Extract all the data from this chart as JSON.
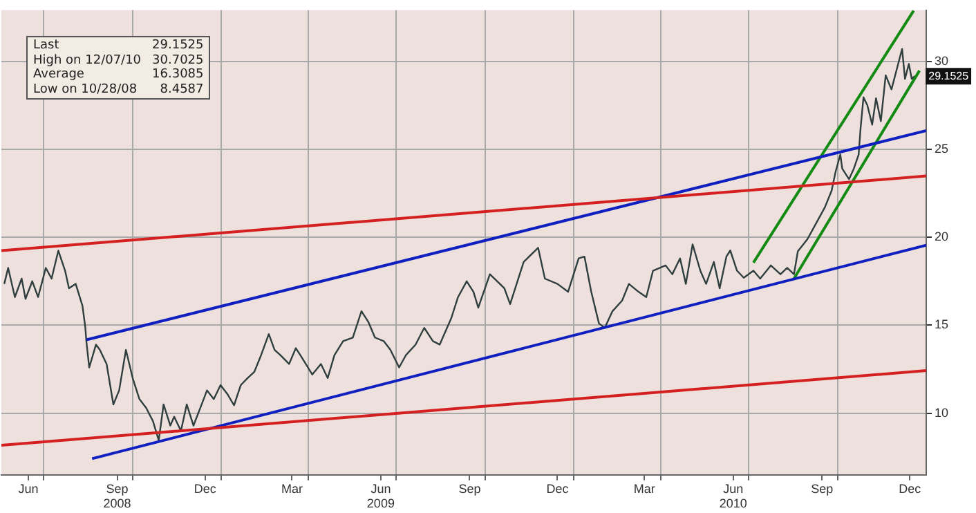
{
  "chart_data": {
    "type": "line",
    "legend": false,
    "grid": true,
    "line_style": "solid",
    "marker": "none",
    "xlim": [
      "2008-05-18",
      "2011-01-01"
    ],
    "xticks": [
      {
        "value": "2008-06-15",
        "label": "Jun"
      },
      {
        "value": "2008-07-01",
        "label": null
      },
      {
        "value": "2008-09-15",
        "label": "Sep\n2008"
      },
      {
        "value": "2008-10-01",
        "label": null
      },
      {
        "value": "2008-12-15",
        "label": "Dec"
      },
      {
        "value": "2009-01-01",
        "label": null
      },
      {
        "value": "2009-03-15",
        "label": "Mar"
      },
      {
        "value": "2009-04-01",
        "label": null
      },
      {
        "value": "2009-06-15",
        "label": "Jun\n2009"
      },
      {
        "value": "2009-07-01",
        "label": null
      },
      {
        "value": "2009-09-15",
        "label": "Sep"
      },
      {
        "value": "2009-10-01",
        "label": null
      },
      {
        "value": "2009-12-15",
        "label": "Dec"
      },
      {
        "value": "2010-01-01",
        "label": null
      },
      {
        "value": "2010-03-15",
        "label": "Mar"
      },
      {
        "value": "2010-04-01",
        "label": null
      },
      {
        "value": "2010-06-15",
        "label": "Jun\n2010"
      },
      {
        "value": "2010-07-01",
        "label": null
      },
      {
        "value": "2010-09-15",
        "label": "Sep"
      },
      {
        "value": "2010-10-01",
        "label": null
      },
      {
        "value": "2010-12-15",
        "label": "Dec"
      }
    ],
    "ylim": [
      6.5,
      32.9
    ],
    "yticks": [
      10,
      15,
      20,
      25,
      30
    ],
    "series": [
      {
        "color": "#d42020",
        "x": [
          "2008-05-18",
          "2011-01-01"
        ],
        "values": [
          19.24,
          23.48
        ]
      },
      {
        "color": "#d42020",
        "x": [
          "2008-05-18",
          "2011-01-01"
        ],
        "values": [
          8.18,
          12.42
        ]
      },
      {
        "color": "#1020c0",
        "x": [
          "2008-08-14",
          "2011-01-01"
        ],
        "values": [
          14.17,
          26.06
        ]
      },
      {
        "color": "#1020c0",
        "x": [
          "2008-08-20",
          "2011-01-01"
        ],
        "values": [
          7.42,
          19.55
        ]
      },
      {
        "color": "#138a13",
        "x": [
          "2010-07-06",
          "2010-12-19"
        ],
        "values": [
          18.56,
          32.88
        ]
      },
      {
        "color": "#138a13",
        "x": [
          "2010-08-17",
          "2010-12-25"
        ],
        "values": [
          17.65,
          29.47
        ]
      },
      {
        "color": "#2f3f3f",
        "x": [
          "2008-05-21",
          "2008-05-25",
          "2008-06-01",
          "2008-06-08",
          "2008-06-12",
          "2008-06-19",
          "2008-06-25",
          "2008-07-03",
          "2008-07-09",
          "2008-07-16",
          "2008-07-23",
          "2008-07-27",
          "2008-08-03",
          "2008-08-10",
          "2008-08-13",
          "2008-08-14",
          "2008-08-17",
          "2008-08-24",
          "2008-08-28",
          "2008-09-04",
          "2008-09-11",
          "2008-09-17",
          "2008-09-24",
          "2008-10-01",
          "2008-10-08",
          "2008-10-15",
          "2008-10-22",
          "2008-10-28",
          "2008-11-02",
          "2008-11-09",
          "2008-11-13",
          "2008-11-20",
          "2008-11-26",
          "2008-12-03",
          "2008-12-10",
          "2008-12-17",
          "2008-12-24",
          "2008-12-31",
          "2009-01-07",
          "2009-01-14",
          "2009-01-21",
          "2009-01-28",
          "2009-02-04",
          "2009-02-11",
          "2009-02-19",
          "2009-02-25",
          "2009-03-03",
          "2009-03-12",
          "2009-03-19",
          "2009-03-26",
          "2009-04-05",
          "2009-04-14",
          "2009-04-21",
          "2009-04-28",
          "2009-05-07",
          "2009-05-17",
          "2009-05-26",
          "2009-06-02",
          "2009-06-09",
          "2009-06-18",
          "2009-06-25",
          "2009-07-04",
          "2009-07-11",
          "2009-07-21",
          "2009-07-30",
          "2009-08-08",
          "2009-08-15",
          "2009-08-27",
          "2009-09-03",
          "2009-09-12",
          "2009-09-19",
          "2009-09-24",
          "2009-10-06",
          "2009-10-21",
          "2009-10-27",
          "2009-11-10",
          "2009-11-25",
          "2009-12-02",
          "2009-12-15",
          "2009-12-26",
          "2010-01-06",
          "2010-01-12",
          "2010-01-19",
          "2010-01-27",
          "2010-02-02",
          "2010-02-10",
          "2010-02-20",
          "2010-02-27",
          "2010-03-09",
          "2010-03-17",
          "2010-03-24",
          "2010-04-06",
          "2010-04-13",
          "2010-04-21",
          "2010-04-27",
          "2010-05-04",
          "2010-05-12",
          "2010-05-18",
          "2010-05-26",
          "2010-06-01",
          "2010-06-08",
          "2010-06-12",
          "2010-06-19",
          "2010-06-26",
          "2010-07-06",
          "2010-07-13",
          "2010-07-24",
          "2010-08-03",
          "2010-08-10",
          "2010-08-17",
          "2010-08-21",
          "2010-08-31",
          "2010-09-08",
          "2010-09-18",
          "2010-09-25",
          "2010-09-29",
          "2010-10-04",
          "2010-10-06",
          "2010-10-13",
          "2010-10-18",
          "2010-10-23",
          "2010-10-25",
          "2010-10-28",
          "2010-11-01",
          "2010-11-06",
          "2010-11-10",
          "2010-11-15",
          "2010-11-20",
          "2010-11-26",
          "2010-12-07",
          "2010-12-10",
          "2010-12-14",
          "2010-12-17",
          "2010-12-20"
        ],
        "values": [
          17.35,
          18.26,
          16.6,
          17.65,
          16.5,
          17.5,
          16.6,
          18.26,
          17.65,
          19.24,
          18.1,
          17.1,
          17.35,
          16.1,
          14.85,
          14.1,
          12.6,
          13.9,
          13.6,
          12.8,
          10.5,
          11.3,
          13.6,
          12.0,
          10.8,
          10.3,
          9.55,
          8.46,
          10.5,
          9.3,
          9.8,
          9.0,
          10.5,
          9.3,
          10.3,
          11.3,
          10.8,
          11.6,
          11.1,
          10.45,
          11.6,
          12.0,
          12.35,
          13.3,
          14.5,
          13.6,
          13.3,
          12.8,
          13.7,
          13.1,
          12.2,
          12.8,
          12.0,
          13.3,
          14.1,
          14.3,
          15.8,
          15.2,
          14.3,
          14.1,
          13.6,
          12.6,
          13.3,
          13.9,
          14.85,
          14.1,
          13.9,
          15.4,
          16.6,
          17.5,
          16.9,
          16.0,
          17.9,
          17.1,
          16.2,
          18.6,
          19.4,
          17.65,
          17.35,
          16.9,
          18.8,
          18.9,
          16.9,
          15.1,
          14.85,
          15.8,
          16.4,
          17.35,
          16.9,
          16.6,
          18.1,
          18.4,
          17.9,
          18.8,
          17.35,
          19.6,
          18.1,
          17.35,
          18.6,
          17.1,
          18.9,
          19.25,
          18.1,
          17.7,
          18.1,
          17.65,
          18.4,
          17.9,
          18.26,
          17.9,
          19.2,
          19.9,
          20.7,
          21.7,
          22.65,
          23.7,
          24.7,
          23.9,
          23.3,
          23.9,
          24.7,
          26.2,
          27.95,
          27.5,
          26.4,
          27.9,
          26.6,
          29.2,
          28.4,
          30.7,
          29.0,
          29.85,
          29.0,
          29.15
        ]
      }
    ],
    "annotations": [
      "Last 29.1525",
      "High on 12/07/10 30.7025",
      "Average 16.3085",
      "Low on 10/28/08 8.4587",
      {
        "text": "29.1525",
        "x": "2010-12-20",
        "y": 29.1525
      }
    ]
  }
}
